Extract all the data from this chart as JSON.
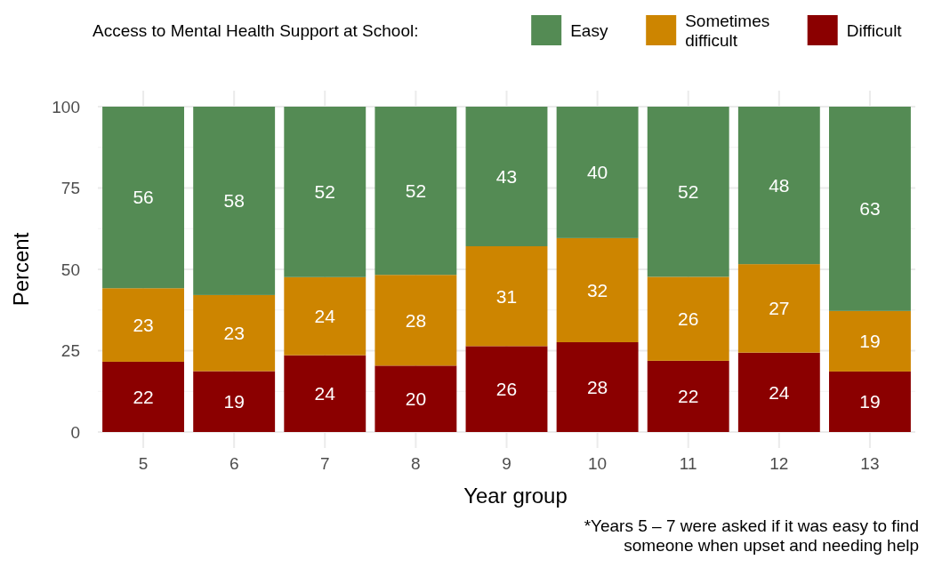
{
  "chart_data": {
    "type": "bar",
    "stacked": true,
    "xlabel": "Year group",
    "ylabel": "Percent",
    "legend_title": "Access to Mental Health Support at School:",
    "legend": "top",
    "categories": [
      "5",
      "6",
      "7",
      "8",
      "9",
      "10",
      "11",
      "12",
      "13"
    ],
    "series": [
      {
        "name": "Difficult",
        "color": "#8b0000",
        "values": [
          21.6,
          18.7,
          23.6,
          20.4,
          26.4,
          27.6,
          21.9,
          24.4,
          18.6
        ],
        "value_labels": [
          "22",
          "19",
          "24",
          "20",
          "26",
          "28",
          "22",
          "24",
          "19"
        ]
      },
      {
        "name": "Sometimes difficult",
        "color": "#cd8500",
        "values": [
          22.6,
          23.4,
          24.0,
          27.9,
          30.7,
          32.0,
          25.8,
          27.2,
          18.6
        ],
        "value_labels": [
          "23",
          "23",
          "24",
          "28",
          "31",
          "32",
          "26",
          "27",
          "19"
        ]
      },
      {
        "name": "Easy",
        "color": "#548b54",
        "values": [
          55.8,
          57.9,
          52.4,
          51.7,
          42.9,
          40.4,
          52.3,
          48.4,
          62.8
        ],
        "value_labels": [
          "56",
          "58",
          "52",
          "52",
          "43",
          "40",
          "52",
          "48",
          "63"
        ]
      }
    ],
    "ylim": [
      0,
      100
    ],
    "yticks": [
      0,
      25,
      50,
      75,
      100
    ],
    "grid": true,
    "annotations": [
      "*Years 5 – 7 were asked if it was easy to find someone when upset and needing help"
    ]
  }
}
